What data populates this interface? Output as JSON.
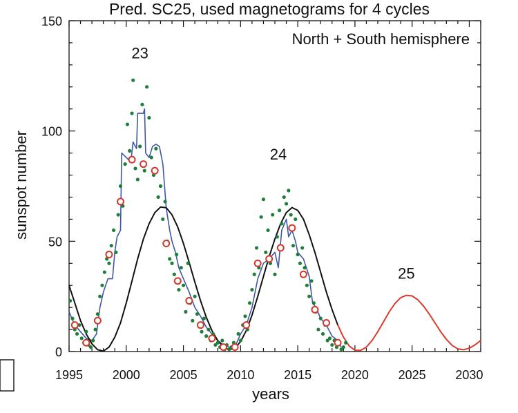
{
  "chart_data": {
    "type": "line",
    "title": "Pred. SC25, used magnetograms for 4 cycles",
    "inset_label": "North + South hemisphere",
    "xlabel": "years",
    "ylabel": "sunspot number",
    "xlim": [
      1995,
      2031
    ],
    "ylim": [
      0,
      150
    ],
    "x_ticks": [
      1995,
      2000,
      2005,
      2010,
      2015,
      2020,
      2025,
      2030
    ],
    "y_ticks": [
      0,
      50,
      100,
      150
    ],
    "x_tick_labels": [
      "1995",
      "2000",
      "2005",
      "2010",
      "2015",
      "2020",
      "2025",
      "2030"
    ],
    "y_tick_labels": [
      "0",
      "50",
      "100",
      "150"
    ],
    "cycle_labels": [
      {
        "text": "23",
        "x": 2001.2,
        "y": 133
      },
      {
        "text": "24",
        "x": 2013.3,
        "y": 87
      },
      {
        "text": "25",
        "x": 2024.5,
        "y": 33
      }
    ],
    "colors": {
      "observed_smoothed": "#3f57a6",
      "prediction_past": "#111111",
      "prediction_future": "#d93a2b",
      "monthly_points": "#1f7f3a",
      "yearly_markers": "#cf3a2b"
    },
    "series": [
      {
        "kind": "step-line",
        "color_key": "observed_smoothed",
        "points": [
          [
            1995.0,
            18
          ],
          [
            1995.5,
            12
          ],
          [
            1996.0,
            9
          ],
          [
            1996.5,
            6
          ],
          [
            1997.0,
            5
          ],
          [
            1997.4,
            8
          ],
          [
            1997.7,
            20
          ],
          [
            1998.0,
            27
          ],
          [
            1998.4,
            33
          ],
          [
            1998.8,
            33
          ],
          [
            1999.0,
            45
          ],
          [
            1999.2,
            52
          ],
          [
            1999.5,
            55
          ],
          [
            1999.6,
            90
          ],
          [
            2000.0,
            88
          ],
          [
            2000.4,
            86
          ],
          [
            2000.6,
            95
          ],
          [
            2000.9,
            92
          ],
          [
            2001.0,
            108
          ],
          [
            2001.5,
            108
          ],
          [
            2001.6,
            110
          ],
          [
            2001.7,
            90
          ],
          [
            2002.0,
            88
          ],
          [
            2002.3,
            93
          ],
          [
            2002.6,
            94
          ],
          [
            2002.9,
            93
          ],
          [
            2003.2,
            85
          ],
          [
            2003.5,
            65
          ],
          [
            2003.8,
            55
          ],
          [
            2004.0,
            50
          ],
          [
            2004.3,
            45
          ],
          [
            2004.6,
            38
          ],
          [
            2005.0,
            33
          ],
          [
            2005.5,
            27
          ],
          [
            2006.0,
            20
          ],
          [
            2006.5,
            16
          ],
          [
            2007.0,
            11
          ],
          [
            2007.5,
            8
          ],
          [
            2008.0,
            5
          ],
          [
            2008.5,
            3
          ],
          [
            2009.0,
            2
          ],
          [
            2009.5,
            2
          ],
          [
            2010.0,
            8
          ],
          [
            2010.5,
            12
          ],
          [
            2011.0,
            20
          ],
          [
            2011.5,
            33
          ],
          [
            2012.0,
            40
          ],
          [
            2012.5,
            42
          ],
          [
            2013.0,
            45
          ],
          [
            2013.3,
            38
          ],
          [
            2013.6,
            55
          ],
          [
            2014.0,
            60
          ],
          [
            2014.2,
            52
          ],
          [
            2014.5,
            55
          ],
          [
            2014.8,
            50
          ],
          [
            2015.0,
            45
          ],
          [
            2015.5,
            42
          ],
          [
            2016.0,
            34
          ],
          [
            2016.3,
            22
          ],
          [
            2016.6,
            20
          ],
          [
            2017.0,
            15
          ],
          [
            2017.5,
            12
          ],
          [
            2018.0,
            7
          ],
          [
            2018.5,
            5
          ],
          [
            2018.8,
            2
          ]
        ]
      },
      {
        "kind": "line",
        "color_key": "prediction_past",
        "points": [
          [
            1995.0,
            30
          ],
          [
            1995.5,
            22
          ],
          [
            1996.0,
            14
          ],
          [
            1996.5,
            8
          ],
          [
            1997.0,
            3.5
          ],
          [
            1997.5,
            0.8
          ],
          [
            1998.0,
            0.2
          ],
          [
            1998.5,
            2
          ],
          [
            1999.0,
            6.5
          ],
          [
            1999.5,
            13
          ],
          [
            2000.0,
            22
          ],
          [
            2000.5,
            32
          ],
          [
            2001.0,
            42
          ],
          [
            2001.5,
            51
          ],
          [
            2002.0,
            58
          ],
          [
            2002.5,
            63
          ],
          [
            2003.0,
            65.5
          ],
          [
            2003.5,
            65.2
          ],
          [
            2004.0,
            62
          ],
          [
            2004.5,
            56.5
          ],
          [
            2005.0,
            49
          ],
          [
            2005.5,
            40.5
          ],
          [
            2006.0,
            31.5
          ],
          [
            2006.5,
            23
          ],
          [
            2007.0,
            15.5
          ],
          [
            2007.5,
            9.5
          ],
          [
            2008.0,
            5
          ],
          [
            2008.5,
            2
          ],
          [
            2009.0,
            0.8
          ],
          [
            2009.5,
            1.5
          ],
          [
            2010.0,
            4.5
          ],
          [
            2010.5,
            9.5
          ],
          [
            2011.0,
            16.5
          ],
          [
            2011.5,
            25
          ],
          [
            2012.0,
            34
          ],
          [
            2012.5,
            43
          ],
          [
            2013.0,
            51
          ],
          [
            2013.5,
            58
          ],
          [
            2014.0,
            63
          ],
          [
            2014.5,
            65.3
          ],
          [
            2015.0,
            64
          ],
          [
            2015.5,
            60
          ],
          [
            2016.0,
            53
          ],
          [
            2016.5,
            45
          ],
          [
            2017.0,
            36
          ],
          [
            2017.5,
            27
          ],
          [
            2018.0,
            19
          ],
          [
            2018.5,
            12
          ]
        ]
      },
      {
        "kind": "line",
        "color_key": "prediction_future",
        "points": [
          [
            2018.5,
            12
          ],
          [
            2019.0,
            6.5
          ],
          [
            2019.5,
            2.5
          ],
          [
            2020.0,
            0.6
          ],
          [
            2020.5,
            0.5
          ],
          [
            2021.0,
            2
          ],
          [
            2021.5,
            5
          ],
          [
            2022.0,
            9
          ],
          [
            2022.5,
            13.5
          ],
          [
            2023.0,
            18
          ],
          [
            2023.5,
            21.8
          ],
          [
            2024.0,
            24.4
          ],
          [
            2024.5,
            25.5
          ],
          [
            2025.0,
            25.2
          ],
          [
            2025.5,
            23.5
          ],
          [
            2026.0,
            20.6
          ],
          [
            2026.5,
            17
          ],
          [
            2027.0,
            13
          ],
          [
            2027.5,
            9
          ],
          [
            2028.0,
            5.5
          ],
          [
            2028.5,
            2.8
          ],
          [
            2029.0,
            1.2
          ],
          [
            2029.5,
            0.8
          ],
          [
            2030.0,
            1.5
          ],
          [
            2030.5,
            3
          ],
          [
            2031.0,
            5
          ]
        ]
      }
    ],
    "monthly_points": [
      [
        1995.1,
        23
      ],
      [
        1995.3,
        15
      ],
      [
        1995.5,
        10
      ],
      [
        1995.7,
        8
      ],
      [
        1995.9,
        12
      ],
      [
        1996.1,
        6
      ],
      [
        1996.3,
        4
      ],
      [
        1996.5,
        9
      ],
      [
        1996.7,
        3
      ],
      [
        1996.9,
        2
      ],
      [
        1997.1,
        5
      ],
      [
        1997.3,
        10
      ],
      [
        1997.5,
        17
      ],
      [
        1997.7,
        25
      ],
      [
        1997.9,
        30
      ],
      [
        1998.1,
        36
      ],
      [
        1998.3,
        42
      ],
      [
        1998.5,
        40
      ],
      [
        1998.7,
        48
      ],
      [
        1998.9,
        55
      ],
      [
        1999.1,
        45
      ],
      [
        1999.3,
        62
      ],
      [
        1999.5,
        75
      ],
      [
        1999.7,
        66
      ],
      [
        1999.9,
        85
      ],
      [
        2000.1,
        103
      ],
      [
        2000.3,
        91
      ],
      [
        2000.5,
        108
      ],
      [
        2000.6,
        123
      ],
      [
        2000.8,
        83
      ],
      [
        2001.0,
        78
      ],
      [
        2001.2,
        93
      ],
      [
        2001.4,
        112
      ],
      [
        2001.6,
        82
      ],
      [
        2001.8,
        120
      ],
      [
        2002.0,
        106
      ],
      [
        2002.2,
        88
      ],
      [
        2002.4,
        80
      ],
      [
        2002.6,
        92
      ],
      [
        2002.8,
        70
      ],
      [
        2003.0,
        75
      ],
      [
        2003.2,
        60
      ],
      [
        2003.4,
        68
      ],
      [
        2003.6,
        50
      ],
      [
        2003.8,
        42
      ],
      [
        2004.0,
        40
      ],
      [
        2004.2,
        35
      ],
      [
        2004.4,
        44
      ],
      [
        2004.6,
        28
      ],
      [
        2004.8,
        38
      ],
      [
        2005.0,
        30
      ],
      [
        2005.2,
        18
      ],
      [
        2005.4,
        40
      ],
      [
        2005.6,
        22
      ],
      [
        2005.8,
        14
      ],
      [
        2006.0,
        25
      ],
      [
        2006.2,
        17
      ],
      [
        2006.4,
        12
      ],
      [
        2006.6,
        9
      ],
      [
        2006.8,
        15
      ],
      [
        2007.0,
        7
      ],
      [
        2007.2,
        10
      ],
      [
        2007.4,
        5
      ],
      [
        2007.6,
        8
      ],
      [
        2007.8,
        3
      ],
      [
        2008.0,
        4
      ],
      [
        2008.2,
        2
      ],
      [
        2008.4,
        5
      ],
      [
        2008.6,
        1
      ],
      [
        2008.8,
        3
      ],
      [
        2009.0,
        1
      ],
      [
        2009.2,
        2
      ],
      [
        2009.4,
        4
      ],
      [
        2009.6,
        2
      ],
      [
        2009.8,
        8
      ],
      [
        2010.0,
        5
      ],
      [
        2010.2,
        12
      ],
      [
        2010.4,
        16
      ],
      [
        2010.6,
        10
      ],
      [
        2010.8,
        22
      ],
      [
        2011.0,
        28
      ],
      [
        2011.2,
        35
      ],
      [
        2011.4,
        47
      ],
      [
        2011.6,
        38
      ],
      [
        2011.8,
        61
      ],
      [
        2012.0,
        69
      ],
      [
        2012.2,
        45
      ],
      [
        2012.4,
        55
      ],
      [
        2012.6,
        40
      ],
      [
        2012.8,
        62
      ],
      [
        2013.0,
        35
      ],
      [
        2013.2,
        52
      ],
      [
        2013.4,
        64
      ],
      [
        2013.6,
        58
      ],
      [
        2013.8,
        70
      ],
      [
        2014.0,
        67
      ],
      [
        2014.2,
        73
      ],
      [
        2014.4,
        62
      ],
      [
        2014.6,
        48
      ],
      [
        2014.8,
        60
      ],
      [
        2015.0,
        44
      ],
      [
        2015.2,
        40
      ],
      [
        2015.4,
        47
      ],
      [
        2015.6,
        38
      ],
      [
        2015.8,
        30
      ],
      [
        2016.0,
        25
      ],
      [
        2016.2,
        32
      ],
      [
        2016.4,
        22
      ],
      [
        2016.6,
        18
      ],
      [
        2016.8,
        10
      ],
      [
        2017.0,
        15
      ],
      [
        2017.2,
        8
      ],
      [
        2017.4,
        12
      ],
      [
        2017.6,
        5
      ],
      [
        2017.8,
        6
      ],
      [
        2018.0,
        3
      ],
      [
        2018.2,
        5
      ],
      [
        2018.4,
        2
      ],
      [
        2018.6,
        4
      ],
      [
        2018.8,
        1
      ],
      [
        2019.0,
        2
      ],
      [
        2019.2,
        4
      ]
    ],
    "yearly_markers": [
      [
        1995.5,
        12
      ],
      [
        1996.5,
        4
      ],
      [
        1997.5,
        14
      ],
      [
        1998.5,
        44
      ],
      [
        1999.5,
        68
      ],
      [
        2000.5,
        87
      ],
      [
        2001.5,
        85
      ],
      [
        2002.5,
        82
      ],
      [
        2003.5,
        49
      ],
      [
        2004.5,
        32
      ],
      [
        2005.5,
        23
      ],
      [
        2006.5,
        12
      ],
      [
        2007.5,
        6
      ],
      [
        2008.5,
        2
      ],
      [
        2009.5,
        2
      ],
      [
        2010.5,
        12
      ],
      [
        2011.5,
        40
      ],
      [
        2012.5,
        42
      ],
      [
        2013.5,
        47
      ],
      [
        2014.5,
        56
      ],
      [
        2015.5,
        35
      ],
      [
        2016.5,
        19
      ],
      [
        2017.5,
        13
      ],
      [
        2018.5,
        4
      ]
    ]
  },
  "ui": {
    "left_box_label": ""
  }
}
